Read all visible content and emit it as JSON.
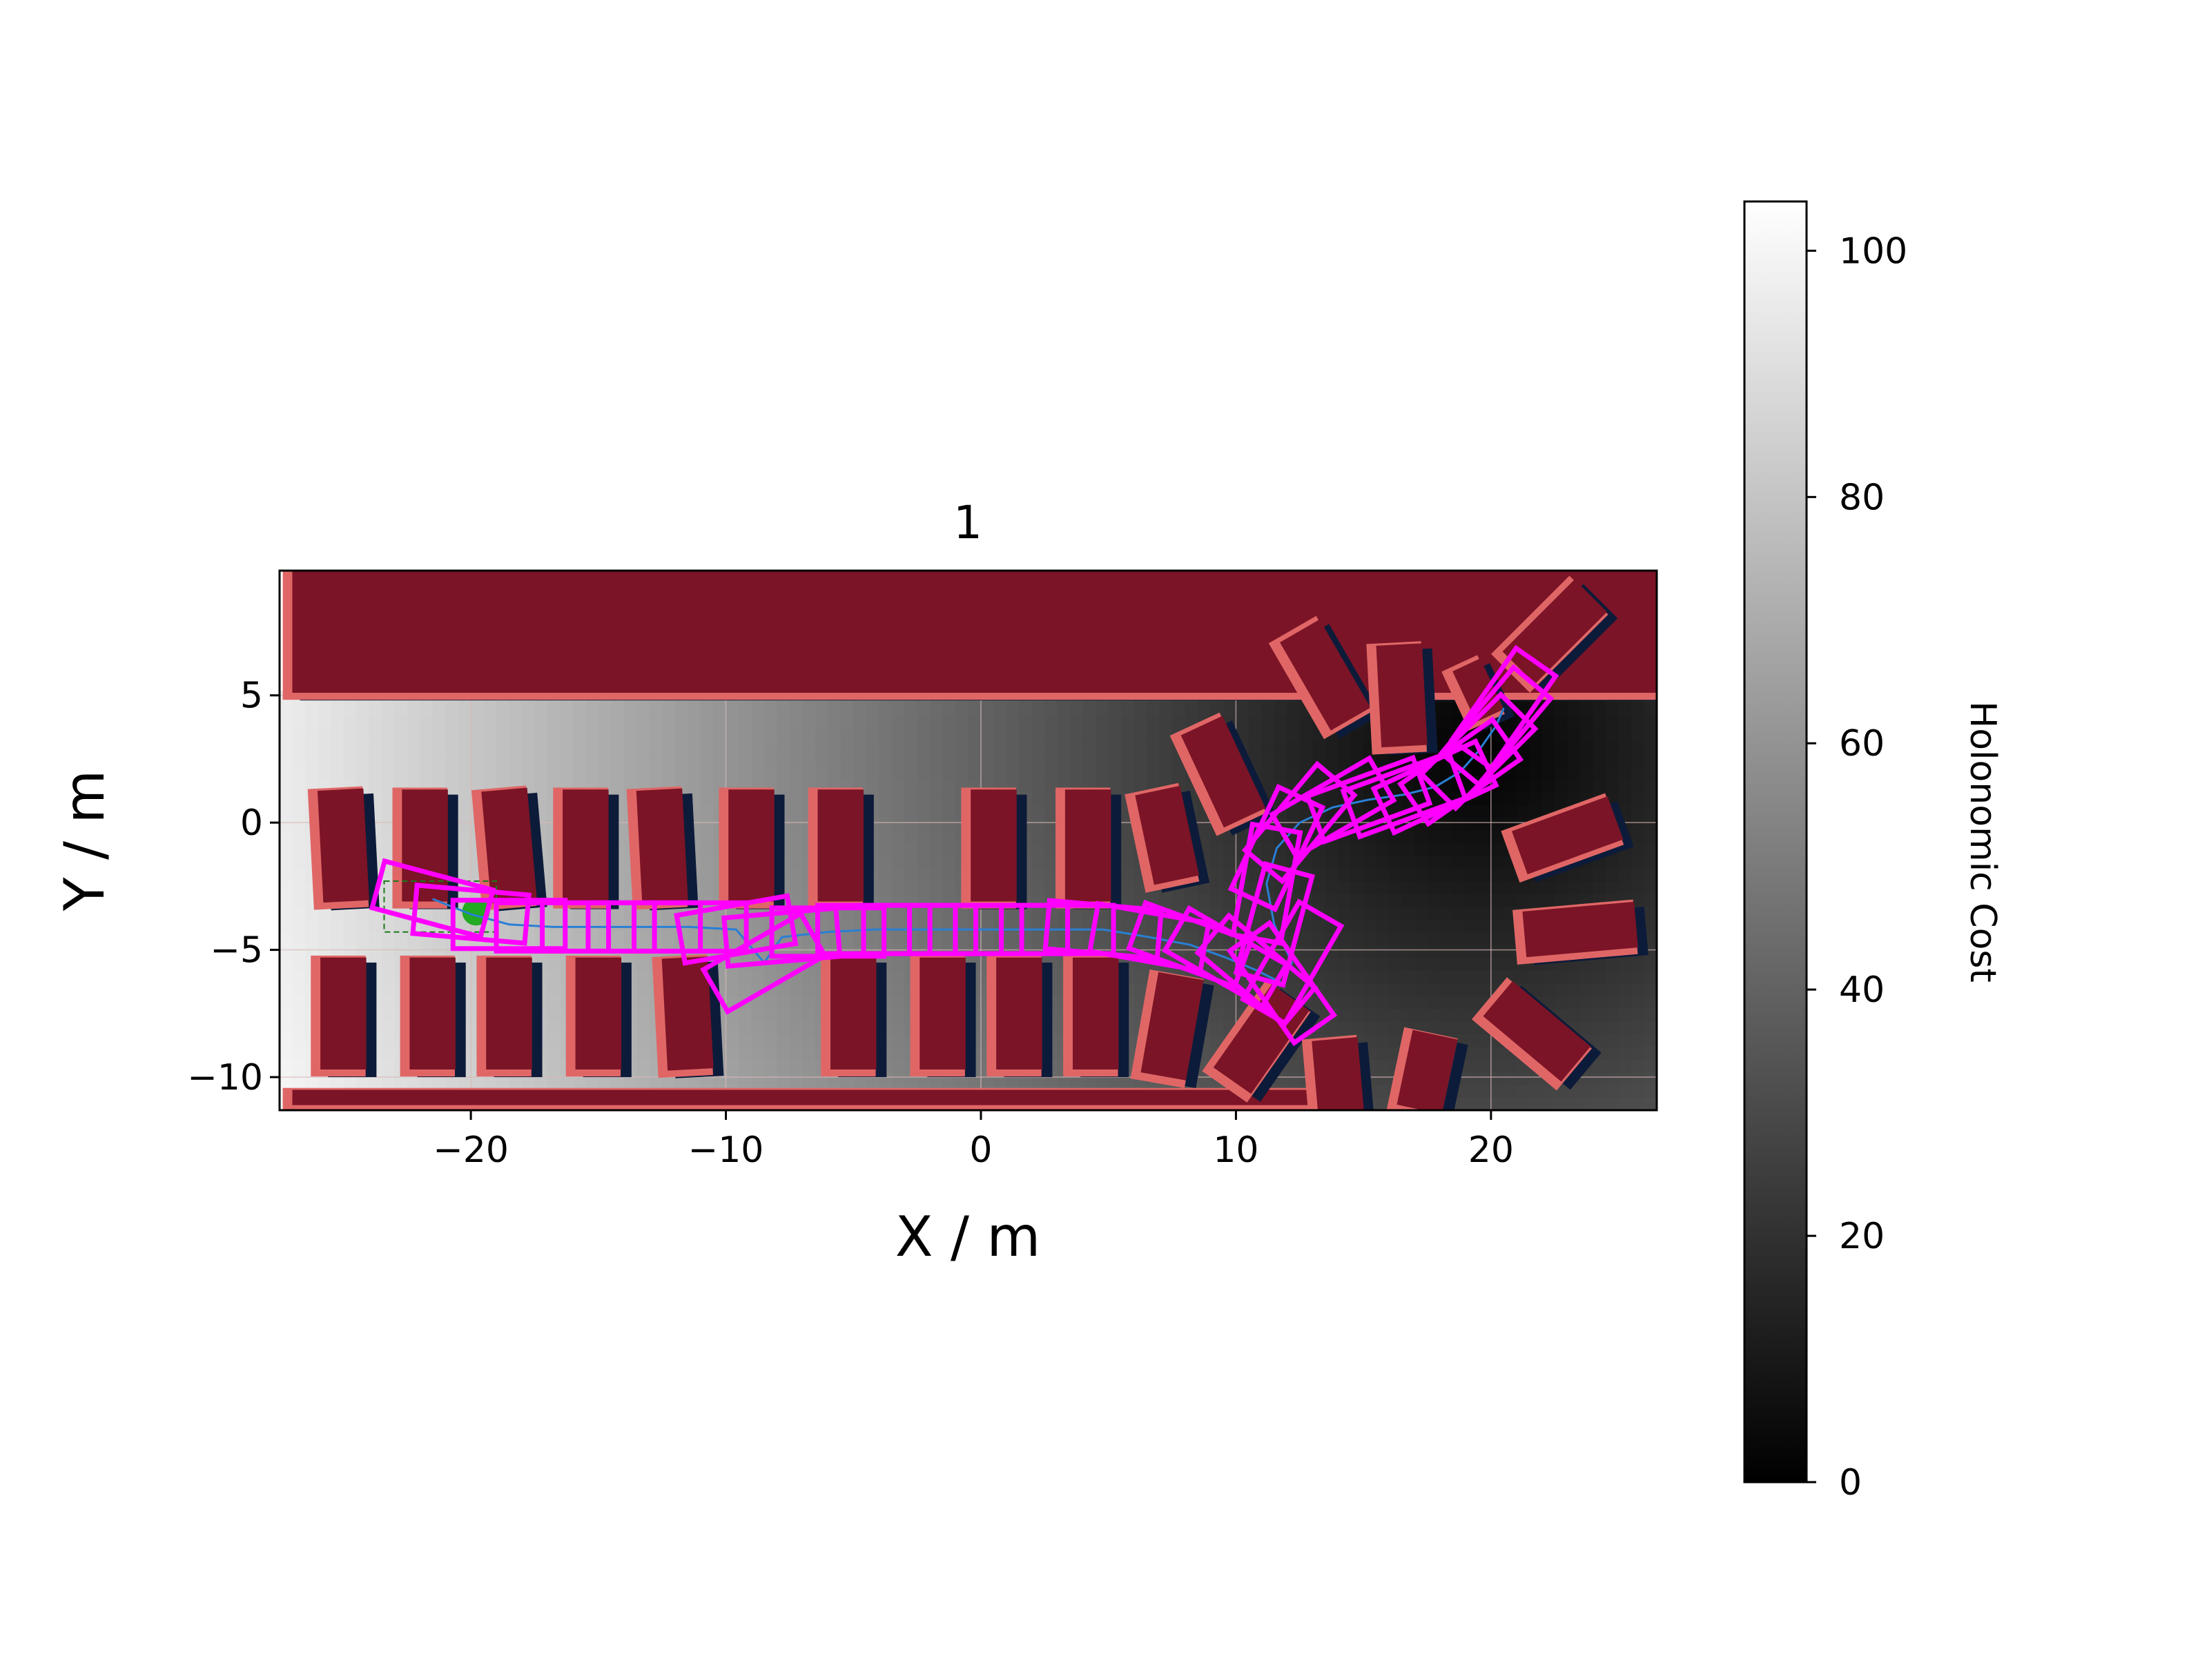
{
  "chart_data": {
    "type": "heatmap",
    "title": "1",
    "xlabel": "X / m",
    "ylabel": "Y / m",
    "xlim": [
      -27.5,
      26.5
    ],
    "ylim": [
      -11.3,
      9.9
    ],
    "xticks": [
      -20,
      -10,
      0,
      10,
      20
    ],
    "yticks": [
      -10,
      -5,
      0,
      5
    ],
    "x_tick_labels": [
      "−20",
      "−10",
      "0",
      "10",
      "20"
    ],
    "y_tick_labels": [
      "−10",
      "−5",
      "0",
      "5"
    ],
    "grid": true,
    "colorbar": {
      "label": "Holonomic Cost",
      "cmap": "gray",
      "range": [
        0,
        104
      ],
      "ticks": [
        0,
        20,
        40,
        60,
        80,
        100
      ],
      "tick_labels": [
        "0",
        "20",
        "40",
        "60",
        "80",
        "100"
      ]
    },
    "cost_field": {
      "goal": [
        19.5,
        2.8
      ],
      "unreachable_region_top": {
        "x0": -27.5,
        "x1": 7.0,
        "y0": 5.1,
        "y1": 9.9
      },
      "max_cost": 104
    },
    "obstacles": [
      {
        "cx": 0,
        "cy": 7.5,
        "w": 54,
        "h": 4.8,
        "angle": 0
      },
      {
        "cx": -7,
        "cy": -10.8,
        "w": 40,
        "h": 0.6,
        "angle": 0
      },
      {
        "cx": -25,
        "cy": -0.9,
        "w": 1.8,
        "h": 4.4,
        "angle": 3
      },
      {
        "cx": -21.8,
        "cy": -0.9,
        "w": 1.8,
        "h": 4.4,
        "angle": 0
      },
      {
        "cx": -18.5,
        "cy": -0.9,
        "w": 1.8,
        "h": 4.4,
        "angle": 5
      },
      {
        "cx": -15.5,
        "cy": -0.9,
        "w": 1.8,
        "h": 4.4,
        "angle": 0
      },
      {
        "cx": -12.5,
        "cy": -0.9,
        "w": 1.8,
        "h": 4.4,
        "angle": 3
      },
      {
        "cx": -9,
        "cy": -0.9,
        "w": 1.8,
        "h": 4.4,
        "angle": 0
      },
      {
        "cx": -5.5,
        "cy": -0.9,
        "w": 1.8,
        "h": 4.4,
        "angle": 0
      },
      {
        "cx": 0.5,
        "cy": -0.9,
        "w": 1.8,
        "h": 4.4,
        "angle": 0
      },
      {
        "cx": 4.2,
        "cy": -0.9,
        "w": 1.8,
        "h": 4.4,
        "angle": 0
      },
      {
        "cx": 7.3,
        "cy": -0.5,
        "w": 1.8,
        "h": 3.6,
        "angle": 12
      },
      {
        "cx": -25,
        "cy": -7.5,
        "w": 1.8,
        "h": 4.4,
        "angle": 0
      },
      {
        "cx": -21.5,
        "cy": -7.5,
        "w": 1.8,
        "h": 4.4,
        "angle": 0
      },
      {
        "cx": -18.5,
        "cy": -7.5,
        "w": 1.8,
        "h": 4.4,
        "angle": 0
      },
      {
        "cx": -15,
        "cy": -7.5,
        "w": 1.8,
        "h": 4.4,
        "angle": 0
      },
      {
        "cx": -11.5,
        "cy": -7.5,
        "w": 1.8,
        "h": 4.4,
        "angle": 3
      },
      {
        "cx": -5,
        "cy": -7.5,
        "w": 1.8,
        "h": 4.4,
        "angle": 0
      },
      {
        "cx": -1.5,
        "cy": -7.5,
        "w": 1.8,
        "h": 4.4,
        "angle": 0
      },
      {
        "cx": 1.5,
        "cy": -7.5,
        "w": 1.8,
        "h": 4.4,
        "angle": 0
      },
      {
        "cx": 4.5,
        "cy": -7.5,
        "w": 1.8,
        "h": 4.4,
        "angle": 0
      },
      {
        "cx": 7.5,
        "cy": -8.0,
        "w": 1.8,
        "h": 4.0,
        "angle": -10
      },
      {
        "cx": 9.5,
        "cy": 2.0,
        "w": 1.8,
        "h": 4.0,
        "angle": 25
      },
      {
        "cx": 11.0,
        "cy": -8.5,
        "w": 1.8,
        "h": 4.0,
        "angle": -35
      },
      {
        "cx": 13.5,
        "cy": 5.8,
        "w": 1.8,
        "h": 4.0,
        "angle": 30
      },
      {
        "cx": 16.5,
        "cy": 5.0,
        "w": 1.8,
        "h": 4.0,
        "angle": 3
      },
      {
        "cx": 14.0,
        "cy": -10.0,
        "w": 1.8,
        "h": 3.0,
        "angle": 5
      },
      {
        "cx": 17.5,
        "cy": -9.8,
        "w": 1.8,
        "h": 3.0,
        "angle": -12
      },
      {
        "cx": 22.5,
        "cy": 7.5,
        "w": 1.8,
        "h": 4.0,
        "angle": -45
      },
      {
        "cx": 23.0,
        "cy": -0.5,
        "w": 1.8,
        "h": 4.0,
        "angle": -70
      },
      {
        "cx": 23.5,
        "cy": -4.2,
        "w": 1.8,
        "h": 4.4,
        "angle": -85
      },
      {
        "cx": 21.8,
        "cy": -8.2,
        "w": 1.8,
        "h": 4.0,
        "angle": -130
      },
      {
        "cx": 19.5,
        "cy": 5.2,
        "w": 1.2,
        "h": 2.2,
        "angle": 25
      }
    ],
    "start_pose": {
      "x": -19.8,
      "y": -3.5,
      "heading_deg": 0
    },
    "start_region": {
      "x0": -23.4,
      "x1": -19.0,
      "y0": -4.3,
      "y1": -2.3
    },
    "path": [
      {
        "x": -21.5,
        "y": -3.0,
        "heading_deg": -15
      },
      {
        "x": -20.0,
        "y": -3.6,
        "heading_deg": -5
      },
      {
        "x": -18.5,
        "y": -4.0,
        "heading_deg": 0
      },
      {
        "x": -16.8,
        "y": -4.1,
        "heading_deg": 0
      },
      {
        "x": -15.0,
        "y": -4.1,
        "heading_deg": 0
      },
      {
        "x": -13.2,
        "y": -4.1,
        "heading_deg": 0
      },
      {
        "x": -11.4,
        "y": -4.1,
        "heading_deg": 0
      },
      {
        "x": -9.6,
        "y": -4.2,
        "heading_deg": 10
      },
      {
        "x": -8.5,
        "y": -5.5,
        "heading_deg": 30
      },
      {
        "x": -7.8,
        "y": -4.5,
        "heading_deg": 5
      },
      {
        "x": -6.0,
        "y": -4.3,
        "heading_deg": 0
      },
      {
        "x": -4.2,
        "y": -4.2,
        "heading_deg": 0
      },
      {
        "x": -2.4,
        "y": -4.2,
        "heading_deg": 0
      },
      {
        "x": -0.6,
        "y": -4.2,
        "heading_deg": 0
      },
      {
        "x": 1.2,
        "y": -4.2,
        "heading_deg": 0
      },
      {
        "x": 3.0,
        "y": -4.2,
        "heading_deg": 0
      },
      {
        "x": 4.8,
        "y": -4.2,
        "heading_deg": -5
      },
      {
        "x": 6.6,
        "y": -4.5,
        "heading_deg": -10
      },
      {
        "x": 8.2,
        "y": -4.8,
        "heading_deg": -20
      },
      {
        "x": 9.6,
        "y": -5.3,
        "heading_deg": -30
      },
      {
        "x": 10.8,
        "y": -5.8,
        "heading_deg": -40
      },
      {
        "x": 11.8,
        "y": -6.3,
        "heading_deg": -55
      },
      {
        "x": 12.2,
        "y": -5.5,
        "heading_deg": 60
      },
      {
        "x": 11.5,
        "y": -4.0,
        "heading_deg": 75
      },
      {
        "x": 11.2,
        "y": -2.4,
        "heading_deg": 80
      },
      {
        "x": 11.6,
        "y": -1.0,
        "heading_deg": 65
      },
      {
        "x": 12.5,
        "y": 0.0,
        "heading_deg": 50
      },
      {
        "x": 13.8,
        "y": 0.6,
        "heading_deg": 30
      },
      {
        "x": 15.2,
        "y": 0.9,
        "heading_deg": 20
      },
      {
        "x": 16.6,
        "y": 1.1,
        "heading_deg": 20
      },
      {
        "x": 17.8,
        "y": 1.4,
        "heading_deg": 25
      },
      {
        "x": 18.8,
        "y": 2.0,
        "heading_deg": 35
      },
      {
        "x": 19.5,
        "y": 2.8,
        "heading_deg": 45
      },
      {
        "x": 20.2,
        "y": 3.8,
        "heading_deg": 50
      },
      {
        "x": 20.5,
        "y": 4.5,
        "heading_deg": 55
      }
    ],
    "vehicle_footprint": {
      "length": 4.4,
      "width": 1.9
    }
  },
  "colors": {
    "obstacle": "#7b1426",
    "obstacle_halo": "#e06666",
    "obstacle_shadow": "#0d1b3a",
    "footprint": "#ff00ff",
    "start_marker": "#22aa22",
    "grid": "#d9b8b8"
  }
}
